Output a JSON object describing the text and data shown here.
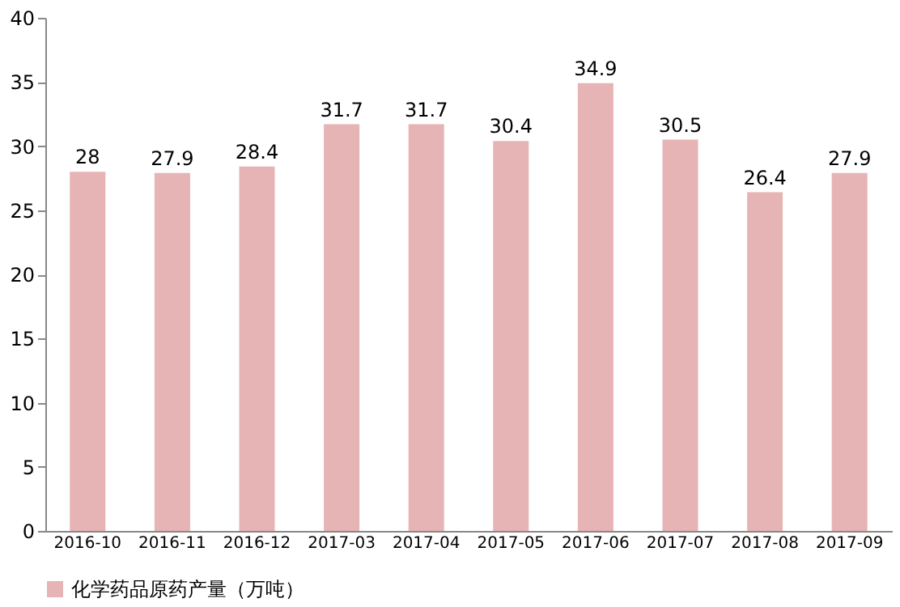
{
  "chart_data": {
    "type": "bar",
    "categories": [
      "2016-10",
      "2016-11",
      "2016-12",
      "2017-03",
      "2017-04",
      "2017-05",
      "2017-06",
      "2017-07",
      "2017-08",
      "2017-09"
    ],
    "series": [
      {
        "name": "化学药品原药产量（万吨）",
        "color": "#e6b4b4",
        "values": [
          28,
          27.9,
          28.4,
          31.7,
          31.7,
          30.4,
          34.9,
          30.5,
          26.4,
          27.9
        ]
      }
    ],
    "ylim": [
      0,
      40
    ],
    "yticks": [
      0,
      5,
      10,
      15,
      20,
      25,
      30,
      35,
      40
    ],
    "data_labels": true,
    "legend": "bottom left",
    "grid": false
  }
}
